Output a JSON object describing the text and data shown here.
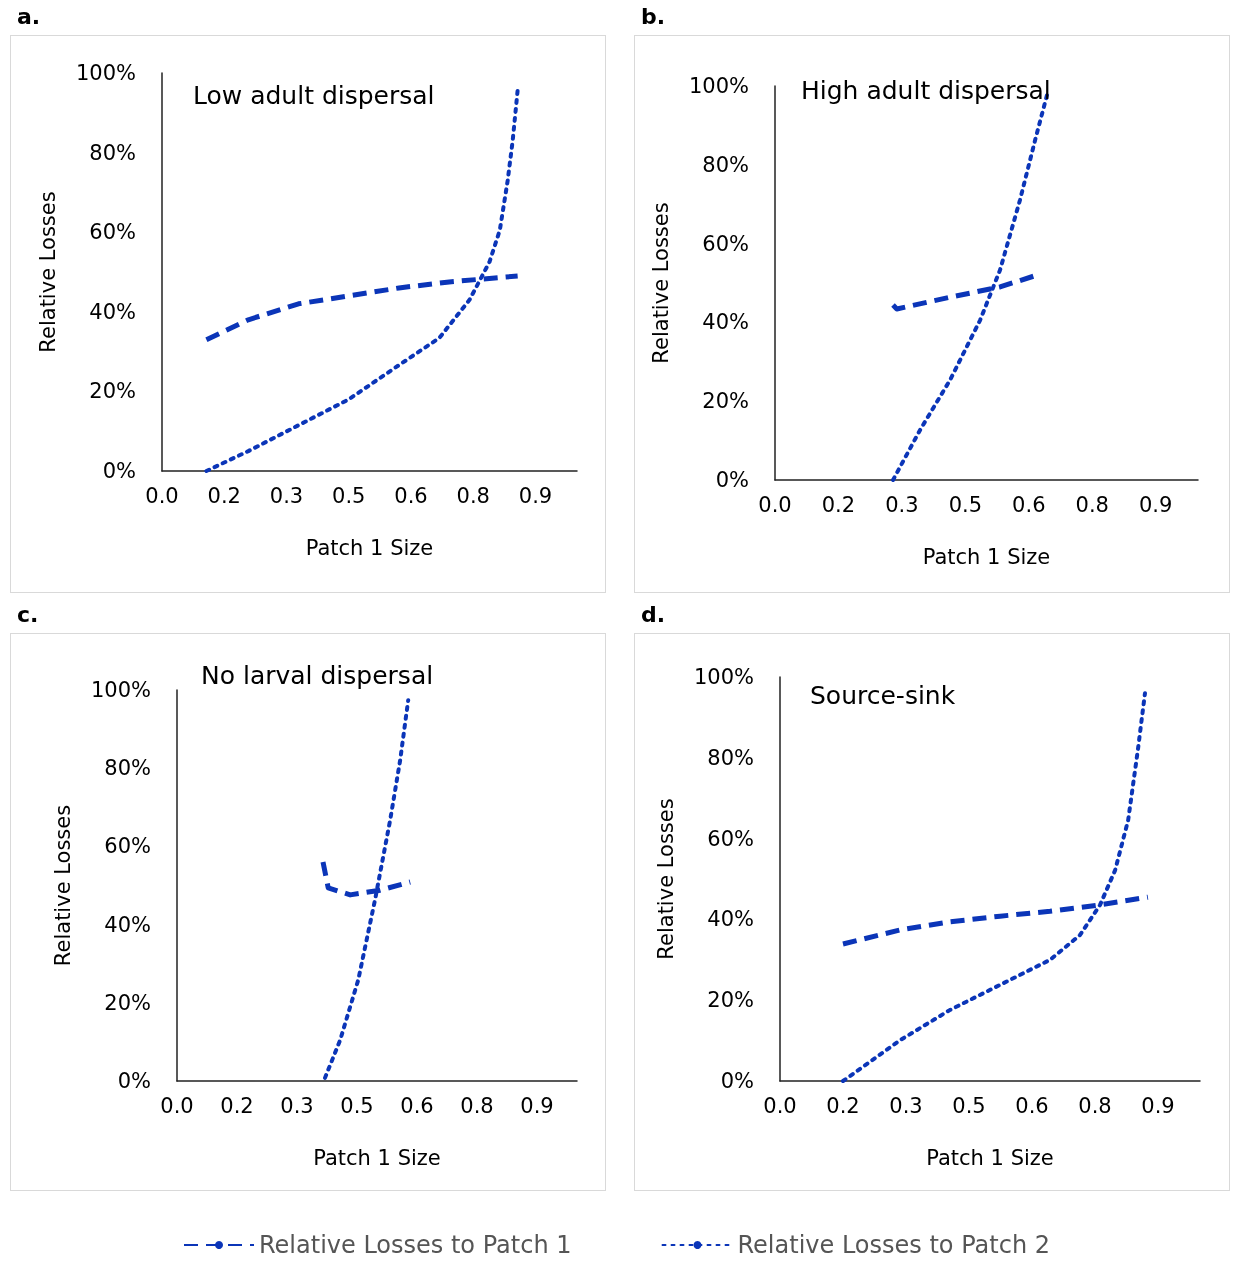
{
  "chart_data": [
    {
      "type": "line",
      "title": "a.",
      "subtitle": "Low adult dispersal",
      "xlabel": "Patch 1 Size",
      "ylabel": "Relative Losses",
      "xlim": [
        0,
        1
      ],
      "ylim": [
        0,
        100
      ],
      "xticks": [
        {
          "value": 0,
          "label": "0.0"
        },
        {
          "value": 0.15,
          "label": "0.2"
        },
        {
          "value": 0.3,
          "label": "0.3"
        },
        {
          "value": 0.45,
          "label": "0.5"
        },
        {
          "value": 0.6,
          "label": "0.6"
        },
        {
          "value": 0.75,
          "label": "0.8"
        },
        {
          "value": 0.9,
          "label": "0.9"
        }
      ],
      "yticks": [
        {
          "value": 0,
          "label": "0%"
        },
        {
          "value": 20,
          "label": "20%"
        },
        {
          "value": 40,
          "label": "40%"
        },
        {
          "value": 60,
          "label": "60%"
        },
        {
          "value": 80,
          "label": "80%"
        },
        {
          "value": 100,
          "label": "100%"
        }
      ],
      "grid": false,
      "legend": false,
      "marker": "none",
      "series": [
        {
          "color": "#0b35b8",
          "line_style": "dashed",
          "x": [
            0.107,
            0.208,
            0.329,
            0.45,
            0.571,
            0.692,
            0.857
          ],
          "values": [
            33,
            38,
            42,
            44,
            46,
            47.5,
            49
          ]
        },
        {
          "color": "#0b35b8",
          "line_style": "dotted",
          "x": [
            0.107,
            0.208,
            0.329,
            0.45,
            0.571,
            0.668,
            0.741,
            0.789,
            0.814,
            0.833,
            0.845,
            0.857
          ],
          "values": [
            0,
            5,
            11.5,
            18,
            26.6,
            33.4,
            43,
            52.5,
            60.5,
            73,
            83,
            95.7
          ]
        }
      ]
    },
    {
      "type": "line",
      "title": "b.",
      "subtitle": "High adult dispersal",
      "xlabel": "Patch 1 Size",
      "ylabel": "Relative Losses",
      "xlim": [
        0,
        1
      ],
      "ylim": [
        0,
        100
      ],
      "xticks": [
        {
          "value": 0,
          "label": "0.0"
        },
        {
          "value": 0.15,
          "label": "0.2"
        },
        {
          "value": 0.3,
          "label": "0.3"
        },
        {
          "value": 0.45,
          "label": "0.5"
        },
        {
          "value": 0.6,
          "label": "0.6"
        },
        {
          "value": 0.75,
          "label": "0.8"
        },
        {
          "value": 0.9,
          "label": "0.9"
        }
      ],
      "yticks": [
        {
          "value": 0,
          "label": "0%"
        },
        {
          "value": 20,
          "label": "20%"
        },
        {
          "value": 40,
          "label": "40%"
        },
        {
          "value": 60,
          "label": "60%"
        },
        {
          "value": 80,
          "label": "80%"
        },
        {
          "value": 100,
          "label": "100%"
        }
      ],
      "grid": false,
      "legend": false,
      "marker": "none",
      "series": [
        {
          "color": "#0b35b8",
          "line_style": "dashed",
          "x": [
            0.279,
            0.288,
            0.414,
            0.532,
            0.619
          ],
          "values": [
            44.4,
            43.4,
            46.4,
            49,
            52
          ]
        },
        {
          "color": "#0b35b8",
          "line_style": "dotted",
          "x": [
            0.279,
            0.343,
            0.414,
            0.485,
            0.532,
            0.579,
            0.615,
            0.643
          ],
          "values": [
            0,
            12.7,
            25.4,
            40.6,
            53.3,
            71,
            86.3,
            97.7
          ]
        }
      ]
    },
    {
      "type": "line",
      "title": "c.",
      "subtitle": "No larval dispersal",
      "xlabel": "Patch 1 Size",
      "ylabel": "Relative Losses",
      "xlim": [
        0,
        1
      ],
      "ylim": [
        0,
        100
      ],
      "xticks": [
        {
          "value": 0,
          "label": "0.0"
        },
        {
          "value": 0.15,
          "label": "0.2"
        },
        {
          "value": 0.3,
          "label": "0.3"
        },
        {
          "value": 0.45,
          "label": "0.5"
        },
        {
          "value": 0.6,
          "label": "0.6"
        },
        {
          "value": 0.75,
          "label": "0.8"
        },
        {
          "value": 0.9,
          "label": "0.9"
        }
      ],
      "yticks": [
        {
          "value": 0,
          "label": "0%"
        },
        {
          "value": 20,
          "label": "20%"
        },
        {
          "value": 40,
          "label": "40%"
        },
        {
          "value": 60,
          "label": "60%"
        },
        {
          "value": 80,
          "label": "80%"
        },
        {
          "value": 100,
          "label": "100%"
        }
      ],
      "grid": false,
      "legend": false,
      "marker": "none",
      "series": [
        {
          "color": "#0b35b8",
          "line_style": "dashed",
          "x": [
            0.365,
            0.378,
            0.433,
            0.508,
            0.583
          ],
          "values": [
            56,
            49.4,
            47.6,
            48.8,
            50.9
          ]
        },
        {
          "color": "#0b35b8",
          "line_style": "dotted",
          "x": [
            0.37,
            0.408,
            0.453,
            0.495,
            0.533,
            0.558,
            0.578
          ],
          "values": [
            0.8,
            10.5,
            25.8,
            46.3,
            66.8,
            82.1,
            97.4
          ]
        }
      ]
    },
    {
      "type": "line",
      "title": "d.",
      "subtitle": "Source-sink",
      "xlabel": "Patch 1 Size",
      "ylabel": "Relative Losses",
      "xlim": [
        0,
        1
      ],
      "ylim": [
        0,
        100
      ],
      "xticks": [
        {
          "value": 0,
          "label": "0.0"
        },
        {
          "value": 0.15,
          "label": "0.2"
        },
        {
          "value": 0.3,
          "label": "0.3"
        },
        {
          "value": 0.45,
          "label": "0.5"
        },
        {
          "value": 0.6,
          "label": "0.6"
        },
        {
          "value": 0.75,
          "label": "0.8"
        },
        {
          "value": 0.9,
          "label": "0.9"
        }
      ],
      "yticks": [
        {
          "value": 0,
          "label": "0%"
        },
        {
          "value": 20,
          "label": "20%"
        },
        {
          "value": 40,
          "label": "40%"
        },
        {
          "value": 60,
          "label": "60%"
        },
        {
          "value": 80,
          "label": "80%"
        },
        {
          "value": 100,
          "label": "100%"
        }
      ],
      "grid": false,
      "legend": "bottom",
      "marker": "none",
      "series": [
        {
          "name": "Relative Losses to Patch 1",
          "color": "#0b35b8",
          "line_style": "dashed",
          "x": [
            0.15,
            0.286,
            0.405,
            0.524,
            0.643,
            0.762,
            0.876
          ],
          "values": [
            33.9,
            37.4,
            39.4,
            40.8,
            42,
            43.6,
            45.5
          ]
        },
        {
          "name": "Relative Losses to Patch 2",
          "color": "#0b35b8",
          "line_style": "dotted",
          "x": [
            0.15,
            0.286,
            0.405,
            0.524,
            0.643,
            0.714,
            0.762,
            0.798,
            0.829,
            0.852,
            0.869
          ],
          "values": [
            0,
            10.1,
            17.6,
            23.8,
            30,
            36.1,
            43.6,
            52.2,
            64.6,
            81.9,
            96
          ]
        }
      ]
    }
  ]
}
